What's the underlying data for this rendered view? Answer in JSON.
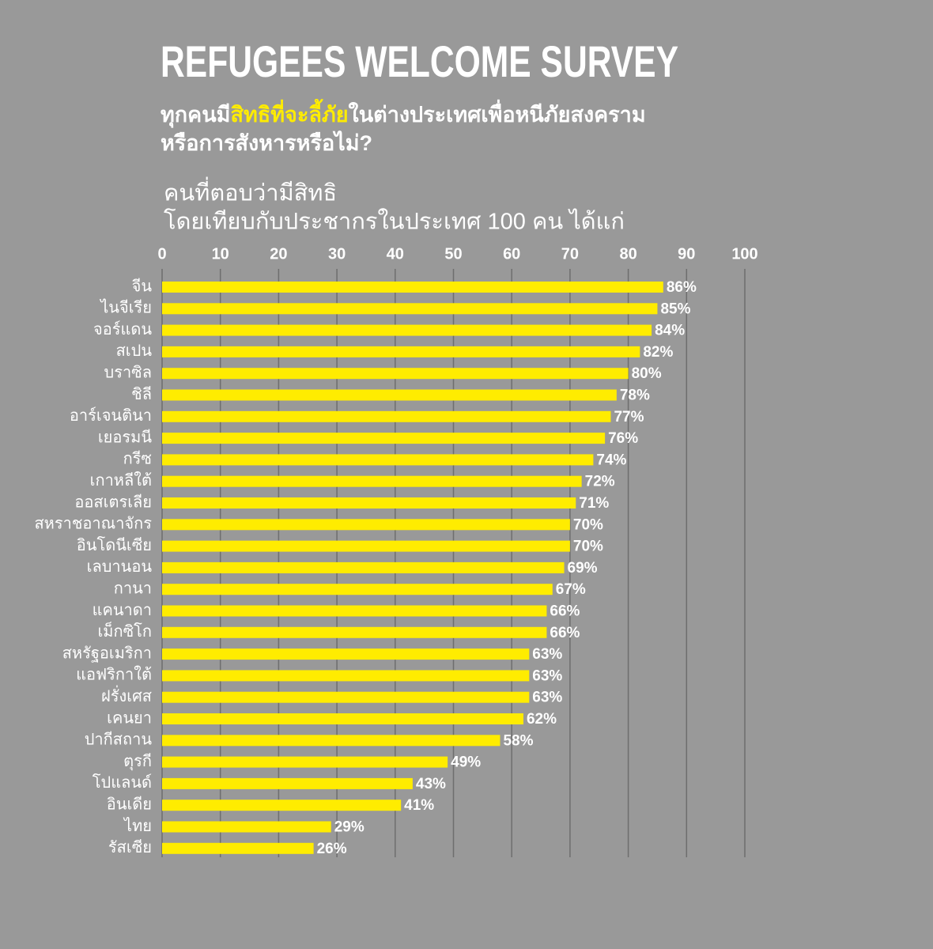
{
  "chart_data": {
    "type": "barh",
    "title": "REFUGEES WELCOME SURVEY",
    "subtitle": [
      [
        "ทุกคนมี",
        "สิทธิที่จะลี้ภัย",
        "ในต่างประเทศเพื่อหนีภัยสงคราม"
      ],
      [
        "หรือการสังหารหรือไม่?"
      ]
    ],
    "xlabel": [
      "คนที่ตอบว่ามีสิทธิ",
      "โดยเทียบกับประชากรในประเทศ 100 คน ได้แก่"
    ],
    "categories": [
      "จีน",
      "ไนจีเรีย",
      "จอร์แดน",
      "สเปน",
      "บราซิล",
      "ชิลี",
      "อาร์เจนตินา",
      "เยอรมนี",
      "กรีซ",
      "เกาหลีใต้",
      "ออสเตรเลีย",
      "สหราชอาณาจักร",
      "อินโดนีเซีย",
      "เลบานอน",
      "กานา",
      "แคนาดา",
      "เม็กซิโก",
      "สหรัฐอเมริกา",
      "แอฟริกาใต้",
      "ฝรั่งเศส",
      "เคนยา",
      "ปากีสถาน",
      "ตุรกี",
      "โปแลนด์",
      "อินเดีย",
      "ไทย",
      "รัสเซีย"
    ],
    "values": [
      86,
      85,
      84,
      82,
      80,
      78,
      77,
      76,
      74,
      72,
      71,
      70,
      70,
      69,
      67,
      66,
      66,
      63,
      63,
      63,
      62,
      58,
      49,
      43,
      41,
      29,
      26
    ],
    "value_labels": [
      "86%",
      "85%",
      "84%",
      "82%",
      "80%",
      "78%",
      "77%",
      "76%",
      "74%",
      "72%",
      "71%",
      "70%",
      "70%",
      "69%",
      "67%",
      "66%",
      "66%",
      "63%",
      "63%",
      "63%",
      "62%",
      "58%",
      "49%",
      "43%",
      "41%",
      "29%",
      "26%"
    ],
    "color": "#ffec00",
    "xlim": [
      0,
      100
    ],
    "xticks": [
      0,
      10,
      20,
      30,
      40,
      50,
      60,
      70,
      80,
      90,
      100
    ],
    "grid": true
  }
}
